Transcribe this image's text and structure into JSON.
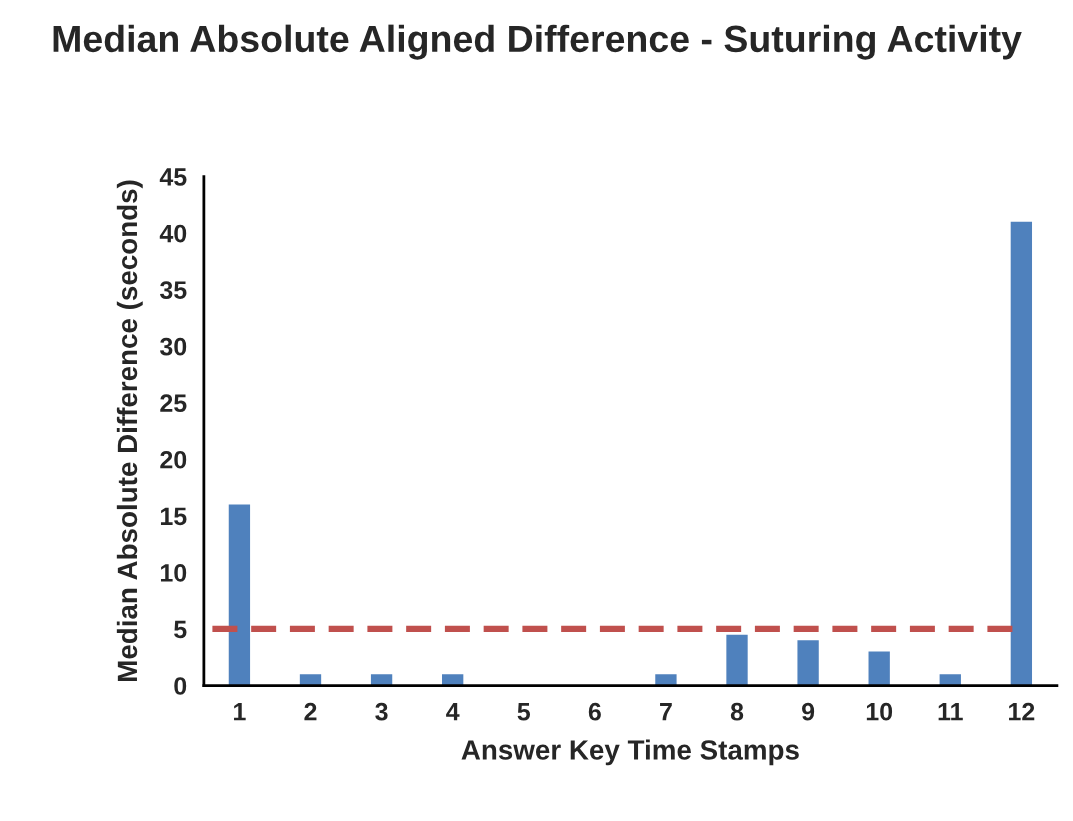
{
  "chart_data": {
    "type": "bar",
    "title": "Median Absolute Aligned Difference - Suturing Activity",
    "xlabel": "Answer Key Time Stamps",
    "ylabel": "Median Absolute Difference (seconds)",
    "categories": [
      "1",
      "2",
      "3",
      "4",
      "5",
      "6",
      "7",
      "8",
      "9",
      "10",
      "11",
      "12"
    ],
    "values": [
      16,
      1,
      1,
      1,
      0,
      0,
      1,
      4.5,
      4,
      3,
      1,
      41
    ],
    "color": "#4f81bd",
    "ylim": [
      0,
      45
    ],
    "yticks": [
      0,
      5,
      10,
      15,
      20,
      25,
      30,
      35,
      40,
      45
    ],
    "ref_lines": [
      {
        "axis": "y",
        "value": 5,
        "color": "#c0504d",
        "line_style": "dashed"
      }
    ],
    "grid": false,
    "legend": false
  }
}
